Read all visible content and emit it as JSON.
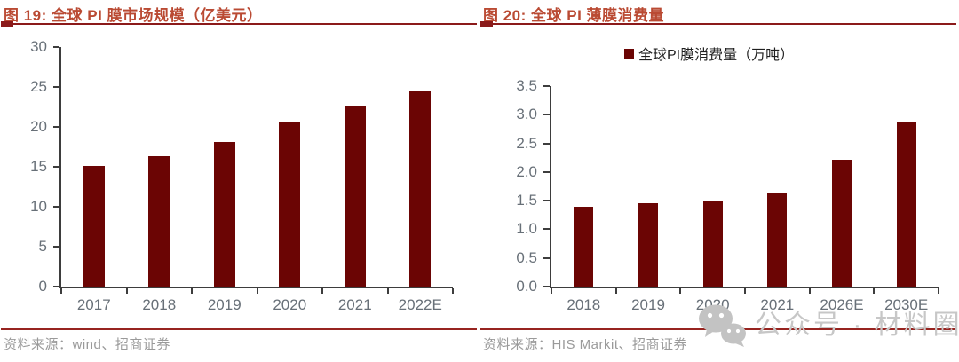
{
  "figures": [
    {
      "title": "图 19: 全球 PI 膜市场规模（亿美元）",
      "source": "资料来源：wind、招商证券"
    },
    {
      "title": "图 20: 全球 PI 薄膜消费量",
      "legend": "全球PI膜消费量（万吨）",
      "source": "资料来源：HIS Markit、招商证券"
    }
  ],
  "chart_data": [
    {
      "type": "bar",
      "title": "图 19: 全球 PI 膜市场规模（亿美元）",
      "categories": [
        "2017",
        "2018",
        "2019",
        "2020",
        "2021",
        "2022E"
      ],
      "values": [
        15.1,
        16.3,
        18.1,
        20.6,
        22.7,
        24.6
      ],
      "ylabel": "亿美元",
      "ylim": [
        0,
        30
      ],
      "ytick_step": 5,
      "ytick_labels": [
        "0",
        "5",
        "10",
        "15",
        "20",
        "25",
        "30"
      ],
      "grid": false,
      "legend_position": "none",
      "bar_color": "#6b0504",
      "source": "资料来源：wind、招商证券"
    },
    {
      "type": "bar",
      "title": "图 20: 全球 PI 薄膜消费量",
      "categories": [
        "2018",
        "2019",
        "2020",
        "2021",
        "2026E",
        "2030E"
      ],
      "values": [
        1.39,
        1.45,
        1.48,
        1.62,
        2.21,
        2.87
      ],
      "ylabel": "万吨",
      "ylim": [
        0,
        3.5
      ],
      "ytick_step": 0.5,
      "ytick_labels": [
        "0.0",
        "0.5",
        "1.0",
        "1.5",
        "2.0",
        "2.5",
        "3.0",
        "3.5"
      ],
      "grid": false,
      "legend_position": "top",
      "legend_entries": [
        "全球PI膜消费量（万吨）"
      ],
      "bar_color": "#6b0504",
      "source": "资料来源：HIS Markit、招商证券"
    }
  ],
  "watermark": {
    "icon": "wechat-icon",
    "text": "公众号 · 材料圈",
    "color": "#c7c7c7"
  },
  "colors": {
    "bar": "#6b0504",
    "title_text": "#ba4a33",
    "title_rule": "#8b1a1a",
    "axis_line": "#3d3d3d",
    "axis_label": "#687078",
    "source_rule": "#972420",
    "source_text": "#9a9a9a",
    "legend_text": "#1f1f1f"
  }
}
